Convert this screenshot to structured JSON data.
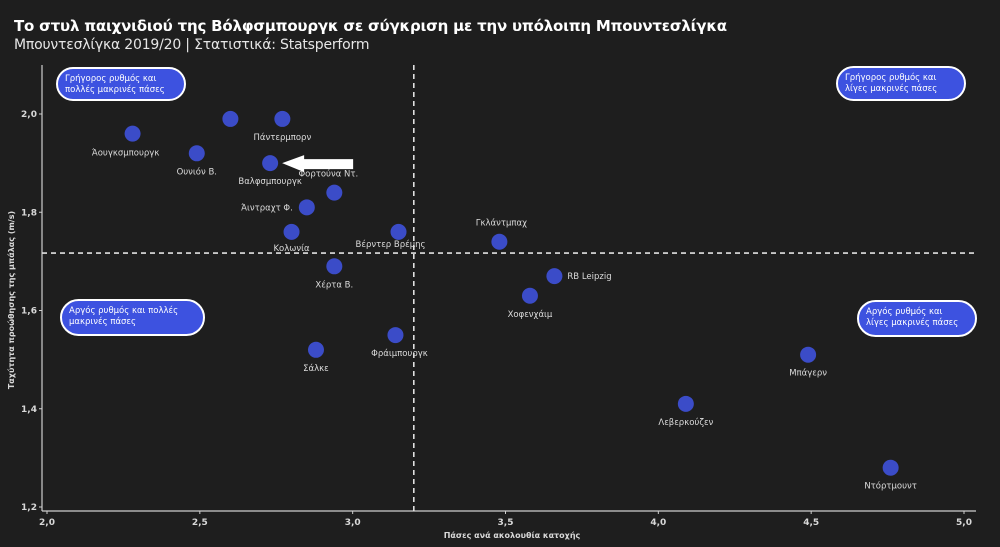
{
  "header": {
    "title": "Το στυλ παιχνιδιού της Βόλφσμπουργκ σε σύγκριση με την υπόλοιπη Μπουντεσλίγκα",
    "subtitle": "Μπουντεσλίγκα 2019/20 | Στατιστικά: Statsperform"
  },
  "colors": {
    "background": "#1e1e1e",
    "point": "#3b4cc8",
    "box_fill": "#3d52e0",
    "box_stroke": "#ffffff",
    "guide": "#e0e0e0"
  },
  "chart_data": {
    "type": "scatter",
    "title": "Το στυλ παιχνιδιού της Βόλφσμπουργκ σε σύγκριση με την υπόλοιπη Μπουντεσλίγκα",
    "subtitle": "Μπουντεσλίγκα 2019/20 | Στατιστικά: Statsperform",
    "xlabel": "Πάσες ανά ακολουθία κατοχής",
    "ylabel": "Ταχύτητα προώθησης της μπάλας (m/s)",
    "xlim": [
      2.0,
      5.0
    ],
    "ylim": [
      1.2,
      2.1
    ],
    "x_ticks": [
      "2,0",
      "2,5",
      "3,0",
      "3,5",
      "4,0",
      "4,5",
      "5,0"
    ],
    "x_tick_values": [
      2.0,
      2.5,
      3.0,
      3.5,
      4.0,
      4.5,
      5.0
    ],
    "y_ticks": [
      "2,0",
      "1,8",
      "1,6",
      "1,4",
      "1,2"
    ],
    "y_tick_values": [
      2.0,
      1.8,
      1.6,
      1.4,
      1.2
    ],
    "grid": false,
    "reference_lines": {
      "x": 3.2,
      "y": 1.717
    },
    "highlight_team": "Βαλφσμπουργκ",
    "points": [
      {
        "label": "Άουγκσμπουργκ",
        "x": 2.28,
        "y": 1.96,
        "label_pos": "below-left"
      },
      {
        "label": "Ουνιόν Β.",
        "x": 2.49,
        "y": 1.92,
        "label_pos": "below"
      },
      {
        "label": "",
        "x": 2.6,
        "y": 1.99,
        "label_pos": "none"
      },
      {
        "label": "Πάντερμπορν",
        "x": 2.77,
        "y": 1.99,
        "label_pos": "below"
      },
      {
        "label": "Βαλφσμπουργκ",
        "x": 2.73,
        "y": 1.9,
        "label_pos": "below"
      },
      {
        "label": "Φορτούνα Ντ.",
        "x": 2.94,
        "y": 1.84,
        "label_pos": "above"
      },
      {
        "label": "Άιντραχτ Φ.",
        "x": 2.85,
        "y": 1.81,
        "label_pos": "left"
      },
      {
        "label": "Κολωνία",
        "x": 2.8,
        "y": 1.76,
        "label_pos": "below"
      },
      {
        "label": "Βέρντερ Βρέμης",
        "x": 3.15,
        "y": 1.76,
        "label_pos": "below-left"
      },
      {
        "label": "Χέρτα Β.",
        "x": 2.94,
        "y": 1.69,
        "label_pos": "below"
      },
      {
        "label": "Γκλάντμπαχ",
        "x": 3.48,
        "y": 1.74,
        "label_pos": "above"
      },
      {
        "label": "RB Leipzig",
        "x": 3.66,
        "y": 1.67,
        "label_pos": "right"
      },
      {
        "label": "Χοφενχάιμ",
        "x": 3.58,
        "y": 1.63,
        "label_pos": "below"
      },
      {
        "label": "Σάλκε",
        "x": 2.88,
        "y": 1.52,
        "label_pos": "below"
      },
      {
        "label": "Φράιμπουργκ",
        "x": 3.14,
        "y": 1.55,
        "label_pos": "below"
      },
      {
        "label": "Μπάγερν",
        "x": 4.49,
        "y": 1.51,
        "label_pos": "below"
      },
      {
        "label": "Λεβερκούζεν",
        "x": 4.09,
        "y": 1.41,
        "label_pos": "below"
      },
      {
        "label": "Ντόρτμουντ",
        "x": 4.76,
        "y": 1.28,
        "label_pos": "below"
      }
    ],
    "annotations": [
      {
        "quadrant": "top-left",
        "lines": [
          "Γρήγορος ρυθμός και",
          "πολλές μακρινές πάσες"
        ]
      },
      {
        "quadrant": "top-right",
        "lines": [
          "Γρήγορος ρυθμός και",
          "λίγες μακρινές πάσες"
        ]
      },
      {
        "quadrant": "bottom-left",
        "lines": [
          "Αργός ρυθμός και πολλές",
          "μακρινές πάσες"
        ]
      },
      {
        "quadrant": "bottom-right",
        "lines": [
          "Αργός ρυθμός και",
          "λίγες μακρινές πάσες"
        ]
      }
    ]
  }
}
